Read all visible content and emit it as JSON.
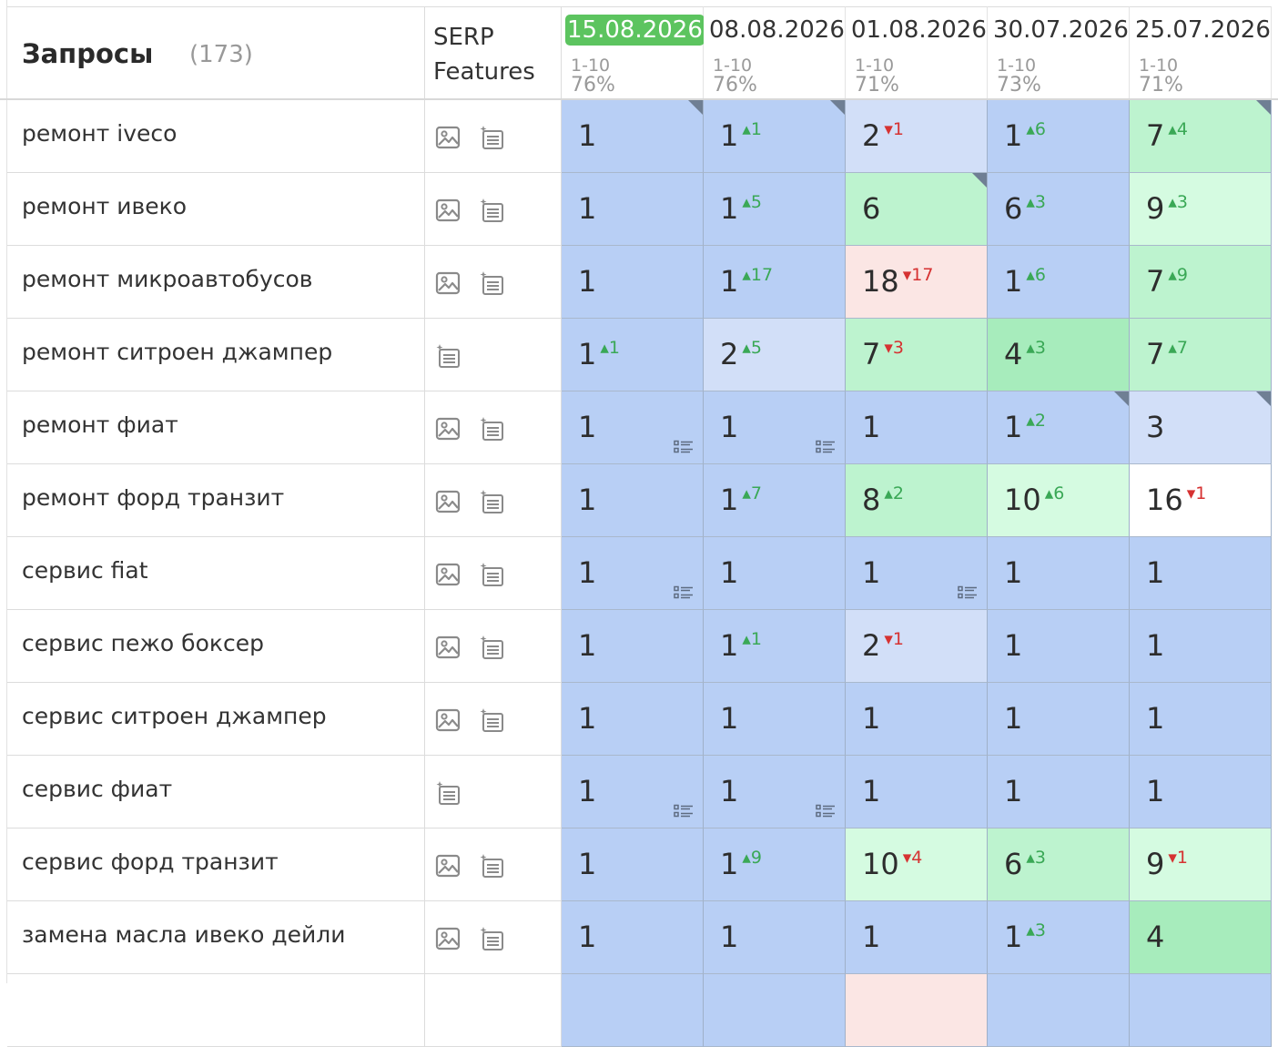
{
  "header": {
    "queries_label": "Запросы",
    "queries_count": "(173)",
    "serp_label_1": "SERP",
    "serp_label_2": "Features",
    "dates": [
      {
        "date": "15.08.2026",
        "range": "1-10",
        "pct": "76%",
        "active": true
      },
      {
        "date": "08.08.2026",
        "range": "1-10",
        "pct": "76%",
        "active": false
      },
      {
        "date": "01.08.2026",
        "range": "1-10",
        "pct": "71%",
        "active": false
      },
      {
        "date": "30.07.2026",
        "range": "1-10",
        "pct": "73%",
        "active": false
      },
      {
        "date": "25.07.2026",
        "range": "1-10",
        "pct": "71%",
        "active": false
      }
    ]
  },
  "colors": {
    "top1": "#b8cff5",
    "top1_light": "#d2dff8",
    "green_dark": "#a7ecbc",
    "green_mid": "#bdf3cf",
    "green_light": "#d5fbe1",
    "red_light": "#fbe6e4",
    "white": "#ffffff",
    "delta_up": "#3aa856",
    "delta_down": "#d63232",
    "active_date": "#5cc45f"
  },
  "rows": [
    {
      "query": "ремонт iveco",
      "features": [
        "image-icon",
        "snippet-icon"
      ],
      "cells": [
        {
          "pos": "1",
          "delta": "",
          "dir": "",
          "bg": "top1",
          "corner": true,
          "snippet": false
        },
        {
          "pos": "1",
          "delta": "1",
          "dir": "up",
          "bg": "top1",
          "corner": true,
          "snippet": false
        },
        {
          "pos": "2",
          "delta": "1",
          "dir": "down",
          "bg": "top1_light",
          "corner": false,
          "snippet": false
        },
        {
          "pos": "1",
          "delta": "6",
          "dir": "up",
          "bg": "top1",
          "corner": false,
          "snippet": false
        },
        {
          "pos": "7",
          "delta": "4",
          "dir": "up",
          "bg": "green_mid",
          "corner": true,
          "snippet": false
        }
      ]
    },
    {
      "query": "ремонт ивеко",
      "features": [
        "image-icon",
        "snippet-icon"
      ],
      "cells": [
        {
          "pos": "1",
          "delta": "",
          "dir": "",
          "bg": "top1",
          "corner": false,
          "snippet": false
        },
        {
          "pos": "1",
          "delta": "5",
          "dir": "up",
          "bg": "top1",
          "corner": false,
          "snippet": false
        },
        {
          "pos": "6",
          "delta": "",
          "dir": "",
          "bg": "green_mid",
          "corner": true,
          "snippet": false
        },
        {
          "pos": "6",
          "delta": "3",
          "dir": "up",
          "bg": "top1",
          "corner": false,
          "snippet": false
        },
        {
          "pos": "9",
          "delta": "3",
          "dir": "up",
          "bg": "green_light",
          "corner": false,
          "snippet": false
        }
      ]
    },
    {
      "query": "ремонт микроавтобусов",
      "features": [
        "image-icon",
        "snippet-icon"
      ],
      "cells": [
        {
          "pos": "1",
          "delta": "",
          "dir": "",
          "bg": "top1",
          "corner": false,
          "snippet": false
        },
        {
          "pos": "1",
          "delta": "17",
          "dir": "up",
          "bg": "top1",
          "corner": false,
          "snippet": false
        },
        {
          "pos": "18",
          "delta": "17",
          "dir": "down",
          "bg": "red_light",
          "corner": false,
          "snippet": false
        },
        {
          "pos": "1",
          "delta": "6",
          "dir": "up",
          "bg": "top1",
          "corner": false,
          "snippet": false
        },
        {
          "pos": "7",
          "delta": "9",
          "dir": "up",
          "bg": "green_mid",
          "corner": false,
          "snippet": false
        }
      ]
    },
    {
      "query": "ремонт ситроен джампер",
      "features": [
        "snippet-icon"
      ],
      "cells": [
        {
          "pos": "1",
          "delta": "1",
          "dir": "up",
          "bg": "top1",
          "corner": false,
          "snippet": false
        },
        {
          "pos": "2",
          "delta": "5",
          "dir": "up",
          "bg": "top1_light",
          "corner": false,
          "snippet": false
        },
        {
          "pos": "7",
          "delta": "3",
          "dir": "down",
          "bg": "green_mid",
          "corner": false,
          "snippet": false
        },
        {
          "pos": "4",
          "delta": "3",
          "dir": "up",
          "bg": "green_dark",
          "corner": false,
          "snippet": false
        },
        {
          "pos": "7",
          "delta": "7",
          "dir": "up",
          "bg": "green_mid",
          "corner": false,
          "snippet": false
        }
      ]
    },
    {
      "query": "ремонт фиат",
      "features": [
        "image-icon",
        "snippet-icon"
      ],
      "cells": [
        {
          "pos": "1",
          "delta": "",
          "dir": "",
          "bg": "top1",
          "corner": false,
          "snippet": true
        },
        {
          "pos": "1",
          "delta": "",
          "dir": "",
          "bg": "top1",
          "corner": false,
          "snippet": true
        },
        {
          "pos": "1",
          "delta": "",
          "dir": "",
          "bg": "top1",
          "corner": false,
          "snippet": false
        },
        {
          "pos": "1",
          "delta": "2",
          "dir": "up",
          "bg": "top1",
          "corner": true,
          "snippet": false
        },
        {
          "pos": "3",
          "delta": "",
          "dir": "",
          "bg": "top1_light",
          "corner": true,
          "snippet": false
        }
      ]
    },
    {
      "query": "ремонт форд транзит",
      "features": [
        "image-icon",
        "snippet-icon"
      ],
      "cells": [
        {
          "pos": "1",
          "delta": "",
          "dir": "",
          "bg": "top1",
          "corner": false,
          "snippet": false
        },
        {
          "pos": "1",
          "delta": "7",
          "dir": "up",
          "bg": "top1",
          "corner": false,
          "snippet": false
        },
        {
          "pos": "8",
          "delta": "2",
          "dir": "up",
          "bg": "green_mid",
          "corner": false,
          "snippet": false
        },
        {
          "pos": "10",
          "delta": "6",
          "dir": "up",
          "bg": "green_light",
          "corner": false,
          "snippet": false
        },
        {
          "pos": "16",
          "delta": "1",
          "dir": "down",
          "bg": "white",
          "corner": false,
          "snippet": false
        }
      ]
    },
    {
      "query": "сервис fiat",
      "features": [
        "image-icon",
        "snippet-icon"
      ],
      "cells": [
        {
          "pos": "1",
          "delta": "",
          "dir": "",
          "bg": "top1",
          "corner": false,
          "snippet": true
        },
        {
          "pos": "1",
          "delta": "",
          "dir": "",
          "bg": "top1",
          "corner": false,
          "snippet": false
        },
        {
          "pos": "1",
          "delta": "",
          "dir": "",
          "bg": "top1",
          "corner": false,
          "snippet": true
        },
        {
          "pos": "1",
          "delta": "",
          "dir": "",
          "bg": "top1",
          "corner": false,
          "snippet": false
        },
        {
          "pos": "1",
          "delta": "",
          "dir": "",
          "bg": "top1",
          "corner": false,
          "snippet": false
        }
      ]
    },
    {
      "query": "сервис пежо боксер",
      "features": [
        "image-icon",
        "snippet-icon"
      ],
      "cells": [
        {
          "pos": "1",
          "delta": "",
          "dir": "",
          "bg": "top1",
          "corner": false,
          "snippet": false
        },
        {
          "pos": "1",
          "delta": "1",
          "dir": "up",
          "bg": "top1",
          "corner": false,
          "snippet": false
        },
        {
          "pos": "2",
          "delta": "1",
          "dir": "down",
          "bg": "top1_light",
          "corner": false,
          "snippet": false
        },
        {
          "pos": "1",
          "delta": "",
          "dir": "",
          "bg": "top1",
          "corner": false,
          "snippet": false
        },
        {
          "pos": "1",
          "delta": "",
          "dir": "",
          "bg": "top1",
          "corner": false,
          "snippet": false
        }
      ]
    },
    {
      "query": "сервис ситроен джампер",
      "features": [
        "image-icon",
        "snippet-icon"
      ],
      "cells": [
        {
          "pos": "1",
          "delta": "",
          "dir": "",
          "bg": "top1",
          "corner": false,
          "snippet": false
        },
        {
          "pos": "1",
          "delta": "",
          "dir": "",
          "bg": "top1",
          "corner": false,
          "snippet": false
        },
        {
          "pos": "1",
          "delta": "",
          "dir": "",
          "bg": "top1",
          "corner": false,
          "snippet": false
        },
        {
          "pos": "1",
          "delta": "",
          "dir": "",
          "bg": "top1",
          "corner": false,
          "snippet": false
        },
        {
          "pos": "1",
          "delta": "",
          "dir": "",
          "bg": "top1",
          "corner": false,
          "snippet": false
        }
      ]
    },
    {
      "query": "сервис фиат",
      "features": [
        "snippet-icon"
      ],
      "cells": [
        {
          "pos": "1",
          "delta": "",
          "dir": "",
          "bg": "top1",
          "corner": false,
          "snippet": true
        },
        {
          "pos": "1",
          "delta": "",
          "dir": "",
          "bg": "top1",
          "corner": false,
          "snippet": true
        },
        {
          "pos": "1",
          "delta": "",
          "dir": "",
          "bg": "top1",
          "corner": false,
          "snippet": false
        },
        {
          "pos": "1",
          "delta": "",
          "dir": "",
          "bg": "top1",
          "corner": false,
          "snippet": false
        },
        {
          "pos": "1",
          "delta": "",
          "dir": "",
          "bg": "top1",
          "corner": false,
          "snippet": false
        }
      ]
    },
    {
      "query": "сервис форд транзит",
      "features": [
        "image-icon",
        "snippet-icon"
      ],
      "cells": [
        {
          "pos": "1",
          "delta": "",
          "dir": "",
          "bg": "top1",
          "corner": false,
          "snippet": false
        },
        {
          "pos": "1",
          "delta": "9",
          "dir": "up",
          "bg": "top1",
          "corner": false,
          "snippet": false
        },
        {
          "pos": "10",
          "delta": "4",
          "dir": "down",
          "bg": "green_light",
          "corner": false,
          "snippet": false
        },
        {
          "pos": "6",
          "delta": "3",
          "dir": "up",
          "bg": "green_mid",
          "corner": false,
          "snippet": false
        },
        {
          "pos": "9",
          "delta": "1",
          "dir": "down",
          "bg": "green_light",
          "corner": false,
          "snippet": false
        }
      ]
    },
    {
      "query": "замена масла ивеко дейли",
      "features": [
        "image-icon",
        "snippet-icon"
      ],
      "cells": [
        {
          "pos": "1",
          "delta": "",
          "dir": "",
          "bg": "top1",
          "corner": false,
          "snippet": false
        },
        {
          "pos": "1",
          "delta": "",
          "dir": "",
          "bg": "top1",
          "corner": false,
          "snippet": false
        },
        {
          "pos": "1",
          "delta": "",
          "dir": "",
          "bg": "top1",
          "corner": false,
          "snippet": false
        },
        {
          "pos": "1",
          "delta": "3",
          "dir": "up",
          "bg": "top1",
          "corner": false,
          "snippet": false
        },
        {
          "pos": "4",
          "delta": "",
          "dir": "",
          "bg": "green_dark",
          "corner": false,
          "snippet": false
        }
      ]
    },
    {
      "query": "",
      "features": [],
      "cells": [
        {
          "pos": "",
          "delta": "",
          "dir": "",
          "bg": "top1",
          "corner": false,
          "snippet": false
        },
        {
          "pos": "",
          "delta": "",
          "dir": "",
          "bg": "top1",
          "corner": false,
          "snippet": false
        },
        {
          "pos": "",
          "delta": "",
          "dir": "",
          "bg": "red_light",
          "corner": false,
          "snippet": false
        },
        {
          "pos": "",
          "delta": "",
          "dir": "",
          "bg": "top1",
          "corner": false,
          "snippet": false
        },
        {
          "pos": "",
          "delta": "",
          "dir": "",
          "bg": "top1",
          "corner": false,
          "snippet": false
        }
      ]
    }
  ]
}
